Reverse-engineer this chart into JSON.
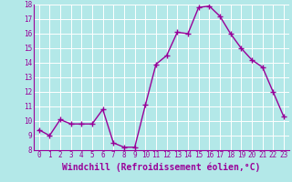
{
  "x": [
    0,
    1,
    2,
    3,
    4,
    5,
    6,
    7,
    8,
    9,
    10,
    11,
    12,
    13,
    14,
    15,
    16,
    17,
    18,
    19,
    20,
    21,
    22,
    23
  ],
  "y": [
    9.4,
    9.0,
    10.1,
    9.8,
    9.8,
    9.8,
    10.8,
    8.5,
    8.2,
    8.2,
    11.1,
    13.9,
    14.5,
    16.1,
    16.0,
    17.8,
    17.9,
    17.2,
    16.0,
    15.0,
    14.2,
    13.7,
    12.0,
    10.3
  ],
  "line_color": "#990099",
  "marker_color": "#990099",
  "bg_color": "#b3e8e8",
  "grid_color": "#ffffff",
  "xlabel": "Windchill (Refroidissement éolien,°C)",
  "xlabel_color": "#990099",
  "ylim": [
    8,
    18
  ],
  "ytick_step": 1,
  "xtick_labels": [
    "0",
    "1",
    "2",
    "3",
    "4",
    "5",
    "6",
    "7",
    "8",
    "9",
    "10",
    "11",
    "12",
    "13",
    "14",
    "15",
    "16",
    "17",
    "18",
    "19",
    "20",
    "21",
    "22",
    "23"
  ],
  "tick_color": "#990099",
  "tick_fontsize": 5.5,
  "xlabel_fontsize": 7.0,
  "marker_size": 2.5,
  "line_width": 1.0
}
